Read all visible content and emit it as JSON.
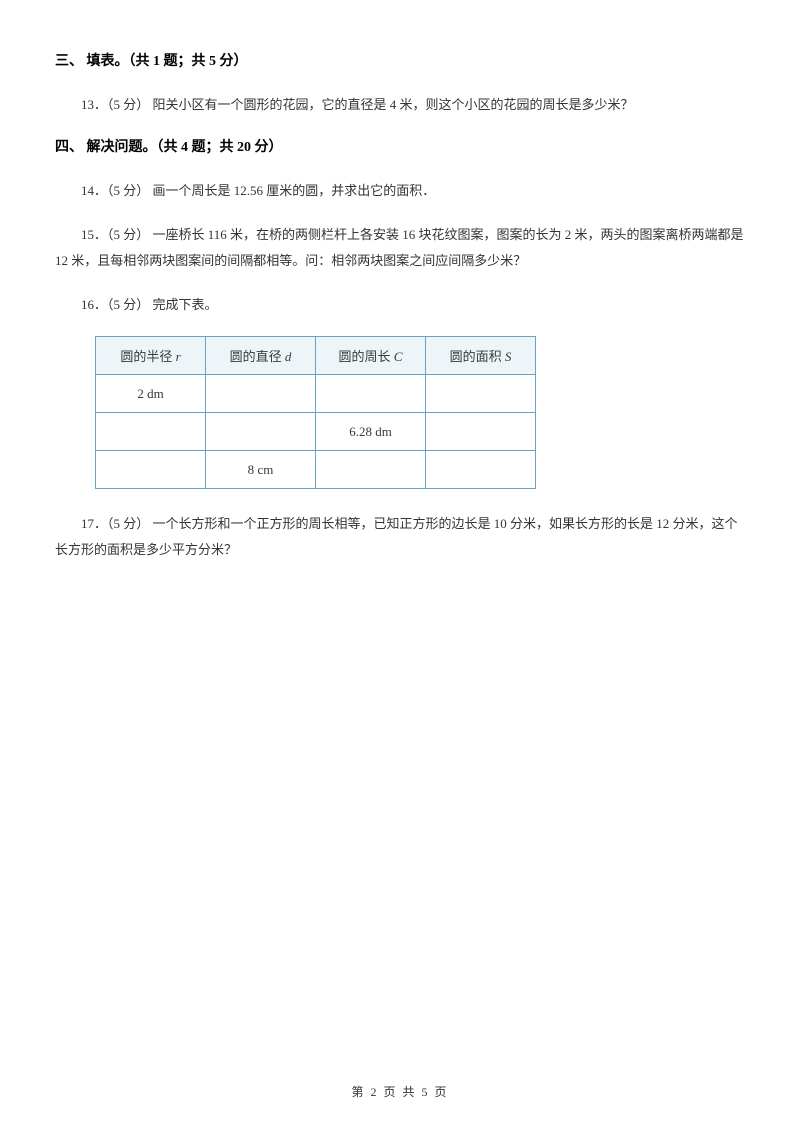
{
  "section3": {
    "heading": "三、 填表。（共 1 题；共 5 分）",
    "q13": "13．（5 分） 阳关小区有一个圆形的花园，它的直径是 4 米，则这个小区的花园的周长是多少米？"
  },
  "section4": {
    "heading": "四、 解决问题。（共 4 题；共 20 分）",
    "q14": "14．（5 分） 画一个周长是 12.56 厘米的圆，并求出它的面积．",
    "q15": "15．（5 分） 一座桥长 116 米，在桥的两侧栏杆上各安装 16 块花纹图案，图案的长为 2 米，两头的图案离桥两端都是 12 米，且每相邻两块图案间的间隔都相等。问：相邻两块图案之间应间隔多少米？",
    "q16": "16．（5 分） 完成下表。",
    "q17": "17．（5 分） 一个长方形和一个正方形的周长相等，已知正方形的边长是 10 分米，如果长方形的长是 12 分米，这个长方形的面积是多少平方分米？"
  },
  "table": {
    "headers": {
      "r_pre": "圆的半径 ",
      "r_var": "r",
      "d_pre": "圆的直径 ",
      "d_var": "d",
      "c_pre": "圆的周长 ",
      "c_var": "C",
      "s_pre": "圆的面积 ",
      "s_var": "S"
    },
    "rows": [
      {
        "r": "2 dm",
        "d": "",
        "c": "",
        "s": ""
      },
      {
        "r": "",
        "d": "",
        "c": "6.28 dm",
        "s": ""
      },
      {
        "r": "",
        "d": "8 cm",
        "c": "",
        "s": ""
      }
    ]
  },
  "footer": "第 2 页 共 5 页"
}
